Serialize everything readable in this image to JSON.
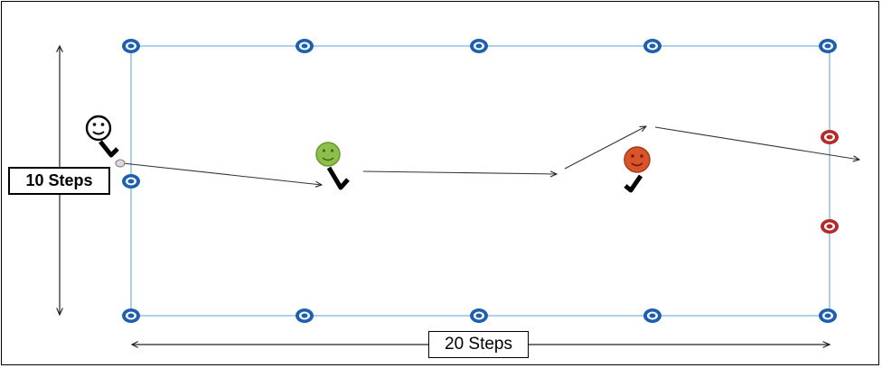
{
  "labels": {
    "height": "10 Steps",
    "width": "20 Steps"
  },
  "cones": {
    "blue_color": "#1f5fb0",
    "red_color": "#b22a2a",
    "white_color": "#d9d9d9"
  },
  "players": {
    "start": {
      "color": "#ffffff",
      "icon": "smiley-with-stick-icon"
    },
    "middle": {
      "color": "#8cc04a",
      "icon": "smiley-with-stick-icon"
    },
    "goal": {
      "color": "#d9532b",
      "icon": "smiley-with-stick-icon"
    }
  },
  "field_line_color": "#7fb3d9"
}
